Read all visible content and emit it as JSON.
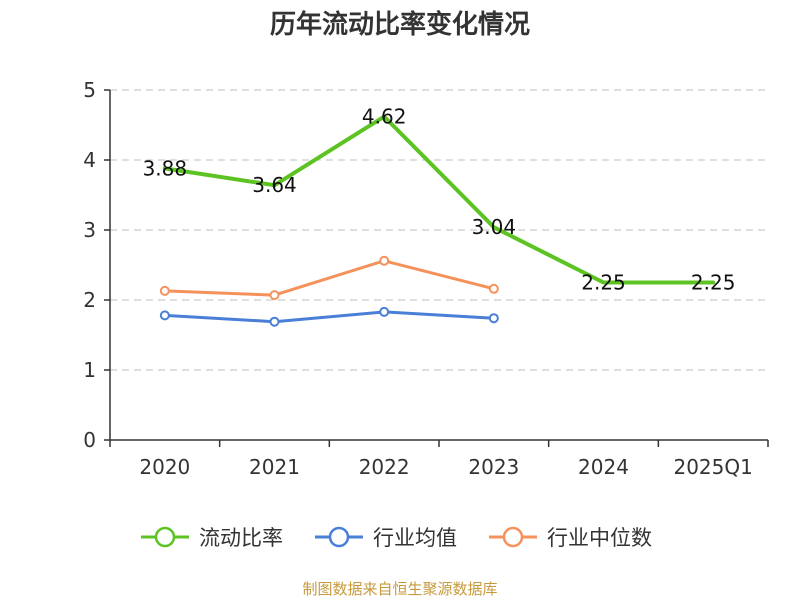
{
  "chart_data": {
    "type": "line",
    "title": "历年流动比率变化情况",
    "categories": [
      "2020",
      "2021",
      "2022",
      "2023",
      "2024",
      "2025Q1"
    ],
    "ylim": [
      0,
      5
    ],
    "yticks": [
      0,
      1,
      2,
      3,
      4,
      5
    ],
    "grid": true,
    "legend_position": "bottom",
    "series": [
      {
        "name": "流动比率",
        "color": "#5cc322",
        "values": [
          3.88,
          3.64,
          4.62,
          3.04,
          2.25,
          2.25
        ],
        "labels": [
          "3.88",
          "3.64",
          "4.62",
          "3.04",
          "2.25",
          "2.25"
        ],
        "markers": false
      },
      {
        "name": "行业均值",
        "color": "#4a7fd8",
        "values": [
          1.78,
          1.69,
          1.83,
          1.74,
          null,
          null
        ],
        "markers": true
      },
      {
        "name": "行业中位数",
        "color": "#f5925c",
        "values": [
          2.13,
          2.07,
          2.56,
          2.16,
          null,
          null
        ],
        "markers": true
      }
    ],
    "source": "制图数据来自恒生聚源数据库"
  }
}
